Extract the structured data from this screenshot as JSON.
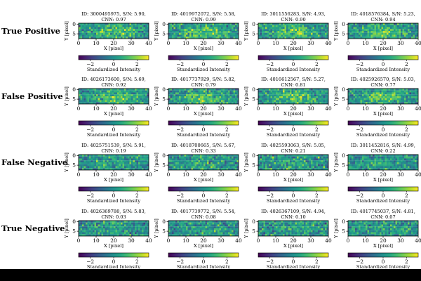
{
  "chart_data": {
    "type": "heatmap",
    "colormap": "viridis",
    "grid_columns": 40,
    "grid_rows": 8,
    "x_axis": {
      "label": "X [pixel]",
      "range": [
        0,
        40
      ],
      "ticks": [
        "0",
        "10",
        "20",
        "30",
        "40"
      ]
    },
    "y_axis": {
      "label": "Y [pixel]",
      "range": [
        0,
        8
      ],
      "ticks": [
        "0",
        "5"
      ]
    },
    "colorbar": {
      "label": "Standardized Intensity",
      "range": [
        -3,
        3
      ],
      "ticks": [
        "−2",
        "0",
        "2"
      ]
    },
    "rows": [
      {
        "label": "True Positive",
        "panels": [
          {
            "line1": "ID: 3000495975, S/N: 5.90,",
            "line2": "CNN: 0.97"
          },
          {
            "line1": "ID: 4019972072, S/N: 5.58,",
            "line2": "CNN: 0.99"
          },
          {
            "line1": "ID: 3011556283, S/N: 4.93,",
            "line2": "CNN: 0.90"
          },
          {
            "line1": "ID: 4018576384, S/N: 5.23,",
            "line2": "CNN: 0.94"
          }
        ]
      },
      {
        "label": "False Positive",
        "panels": [
          {
            "line1": "ID: 4026173600, S/N: 5.69,",
            "line2": "CNN: 0.92"
          },
          {
            "line1": "ID: 4017737929, S/N: 5.82,",
            "line2": "CNN: 0.79"
          },
          {
            "line1": "ID: 4016612567, S/N: 5.27,",
            "line2": "CNN: 0.81"
          },
          {
            "line1": "ID: 4025926570, S/N: 5.03,",
            "line2": "CNN: 0.77"
          }
        ]
      },
      {
        "label": "False Negative",
        "panels": [
          {
            "line1": "ID: 4025751539, S/N: 5.91,",
            "line2": "CNN: 0.19"
          },
          {
            "line1": "ID: 4018700665, S/N: 5.67,",
            "line2": "CNN: 0.33"
          },
          {
            "line1": "ID: 4025593063, S/N: 5.05,",
            "line2": "CNN: 0.21"
          },
          {
            "line1": "ID: 3011452816, S/N: 4.99,",
            "line2": "CNN: 0.22"
          }
        ]
      },
      {
        "label": "True Negative",
        "panels": [
          {
            "line1": "ID: 4026369788, S/N: 5.83,",
            "line2": "CNN: 0.03"
          },
          {
            "line1": "ID: 4017739772, S/N: 5.54,",
            "line2": "CNN: 0.08"
          },
          {
            "line1": "ID: 4026367109, S/N: 4.94,",
            "line2": "CNN: 0.10"
          },
          {
            "line1": "ID: 4017745037, S/N: 4.81,",
            "line2": "CNN: 0.07"
          }
        ]
      }
    ]
  }
}
